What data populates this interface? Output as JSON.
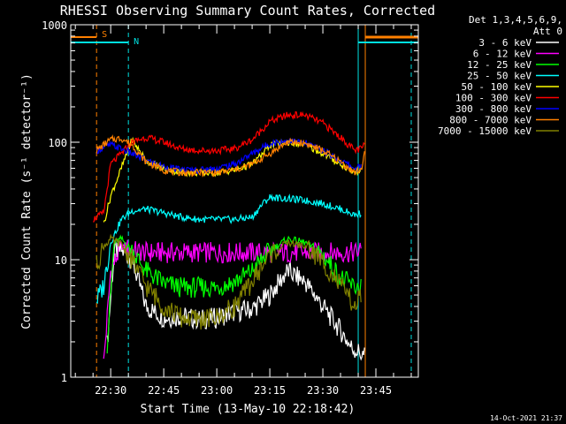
{
  "chart_data": {
    "type": "line",
    "title": "RHESSI Observing Summary Count Rates, Corrected",
    "xlabel": "Start Time (13-May-10 22:18:42)",
    "ylabel": "Corrected Count Rate (s⁻¹ detector⁻¹)",
    "y_scale": "log",
    "ylim": [
      1,
      1000
    ],
    "xlim": [
      "22:18:42",
      "23:57:00"
    ],
    "x_ticks": [
      "22:30",
      "22:45",
      "23:00",
      "23:15",
      "23:30",
      "23:45"
    ],
    "y_ticks": [
      "1",
      "10",
      "100",
      "1000"
    ],
    "legend_header": [
      "Det 1,3,4,5,6,9,",
      "Att 0"
    ],
    "legend_position": "right",
    "footer_date": "14-Oct-2021 21:37",
    "markers": [
      {
        "label": "S",
        "time": "22:26",
        "color": "#ff8000",
        "style": "dashed"
      },
      {
        "label": "N",
        "time": "22:35",
        "color": "#00e0e0",
        "style": "dashed"
      },
      {
        "label": "",
        "time": "23:40",
        "color": "#00e0e0",
        "style": "solid"
      },
      {
        "label": "",
        "time": "23:42",
        "color": "#ff8000",
        "style": "solid"
      },
      {
        "label": "",
        "time": "23:55",
        "color": "#00e0e0",
        "style": "dashed"
      }
    ],
    "series": [
      {
        "name": "3 - 6 keV",
        "color": "#ffffff",
        "x": [
          "22:29",
          "22:31",
          "22:33",
          "22:36",
          "22:40",
          "22:45",
          "22:50",
          "22:55",
          "23:00",
          "23:05",
          "23:10",
          "23:15",
          "23:20",
          "23:25",
          "23:30",
          "23:35",
          "23:38",
          "23:42"
        ],
        "y": [
          1.9,
          12,
          12,
          10,
          4,
          3.2,
          3.3,
          3.1,
          3.2,
          3.6,
          3.8,
          5,
          8,
          6.5,
          4,
          2.5,
          1.8,
          1.5
        ]
      },
      {
        "name": "6 - 12 keV",
        "color": "#ff00ff",
        "x": [
          "22:28",
          "22:30",
          "22:33",
          "22:36",
          "22:40",
          "22:45",
          "22:50",
          "22:55",
          "23:00",
          "23:05",
          "23:10",
          "23:15",
          "23:20",
          "23:25",
          "23:30",
          "23:35",
          "23:39",
          "23:41"
        ],
        "y": [
          1.3,
          8,
          13,
          12,
          11.5,
          11.5,
          11.5,
          11.5,
          11.5,
          11.5,
          11.5,
          11.5,
          11.5,
          11.5,
          11.5,
          11.5,
          11.5,
          12
        ]
      },
      {
        "name": "12 - 25 keV",
        "color": "#00ff00",
        "x": [
          "22:29",
          "22:31",
          "22:33",
          "22:36",
          "22:40",
          "22:45",
          "22:50",
          "22:55",
          "23:00",
          "23:05",
          "23:10",
          "23:15",
          "23:20",
          "23:25",
          "23:30",
          "23:35",
          "23:39",
          "23:41"
        ],
        "y": [
          1.9,
          14,
          15,
          12,
          8,
          6.3,
          5.8,
          5.8,
          5.8,
          6.5,
          8,
          12,
          15,
          14,
          11,
          7,
          5.8,
          6
        ]
      },
      {
        "name": "25 - 50 keV",
        "color": "#00ffff",
        "x": [
          "22:26",
          "22:28",
          "22:30",
          "22:33",
          "22:36",
          "22:40",
          "22:45",
          "22:50",
          "22:55",
          "23:00",
          "23:05",
          "23:10",
          "23:13",
          "23:15",
          "23:20",
          "23:25",
          "23:30",
          "23:35",
          "23:39",
          "23:41"
        ],
        "y": [
          4.5,
          6,
          14,
          22,
          26,
          27,
          25,
          23,
          22,
          22,
          22,
          23,
          30,
          34,
          33,
          32,
          30,
          27,
          24,
          25
        ]
      },
      {
        "name": "50 - 100 keV",
        "color": "#ffff00",
        "x": [
          "22:28",
          "22:30",
          "22:33",
          "22:36",
          "22:40",
          "22:45",
          "22:50",
          "22:55",
          "23:00",
          "23:05",
          "23:10",
          "23:13",
          "23:15",
          "23:20",
          "23:25",
          "23:30",
          "23:35",
          "23:39",
          "23:41"
        ],
        "y": [
          20,
          35,
          60,
          105,
          70,
          60,
          55,
          55,
          55,
          58,
          65,
          80,
          95,
          100,
          95,
          80,
          65,
          55,
          60
        ]
      },
      {
        "name": "100 - 300 keV",
        "color": "#ff0000",
        "x": [
          "22:25",
          "22:28",
          "22:30",
          "22:33",
          "22:36",
          "22:40",
          "22:45",
          "22:50",
          "22:55",
          "23:00",
          "23:05",
          "23:10",
          "23:15",
          "23:20",
          "23:25",
          "23:30",
          "23:35",
          "23:39",
          "23:41",
          "23:42"
        ],
        "y": [
          22,
          25,
          65,
          80,
          100,
          110,
          100,
          88,
          85,
          85,
          88,
          105,
          150,
          170,
          170,
          145,
          110,
          85,
          88,
          100
        ]
      },
      {
        "name": "300 - 800 keV",
        "color": "#0000ff",
        "x": [
          "22:26",
          "22:28",
          "22:30",
          "22:33",
          "22:36",
          "22:40",
          "22:45",
          "22:50",
          "22:55",
          "23:00",
          "23:05",
          "23:10",
          "23:15",
          "23:20",
          "23:25",
          "23:30",
          "23:35",
          "23:39",
          "23:41"
        ],
        "y": [
          85,
          90,
          95,
          88,
          80,
          70,
          62,
          58,
          58,
          60,
          65,
          80,
          98,
          103,
          98,
          85,
          70,
          60,
          62
        ]
      },
      {
        "name": "800 - 7000 keV",
        "color": "#ff8000",
        "x": [
          "22:26",
          "22:28",
          "22:30",
          "22:33",
          "22:36",
          "22:40",
          "22:45",
          "22:50",
          "22:55",
          "23:00",
          "23:05",
          "23:10",
          "23:15",
          "23:20",
          "23:25",
          "23:30",
          "23:35",
          "23:39",
          "23:41",
          "23:42"
        ],
        "y": [
          85,
          95,
          105,
          108,
          95,
          68,
          58,
          55,
          55,
          55,
          58,
          65,
          80,
          100,
          98,
          85,
          68,
          55,
          60,
          90
        ]
      },
      {
        "name": "7000 - 15000 keV",
        "color": "#808000",
        "x": [
          "22:26",
          "22:28",
          "22:30",
          "22:33",
          "22:36",
          "22:40",
          "22:45",
          "22:50",
          "22:55",
          "23:00",
          "23:05",
          "23:10",
          "23:15",
          "23:20",
          "23:25",
          "23:30",
          "23:35",
          "23:39",
          "23:41"
        ],
        "y": [
          9,
          13,
          15,
          13.5,
          10,
          6,
          4,
          3.2,
          3.1,
          3.2,
          4,
          6.5,
          11,
          14,
          13,
          9.5,
          6,
          4,
          5
        ]
      }
    ]
  }
}
